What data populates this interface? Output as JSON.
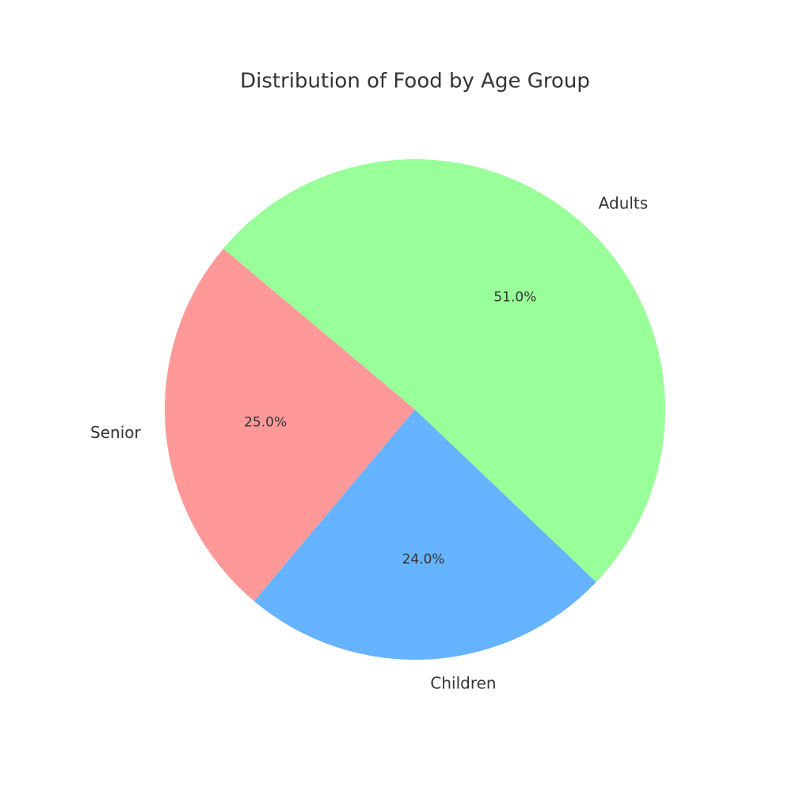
{
  "chart_data": {
    "type": "pie",
    "title": "Distribution of Food by Age Group",
    "categories": [
      "Senior",
      "Children",
      "Adults"
    ],
    "values": [
      25,
      24,
      51
    ],
    "value_labels": [
      "25.0%",
      "24.0%",
      "51.0%"
    ],
    "colors": [
      "#ff9999",
      "#66b3ff",
      "#99ff99"
    ],
    "startangle": 140
  }
}
